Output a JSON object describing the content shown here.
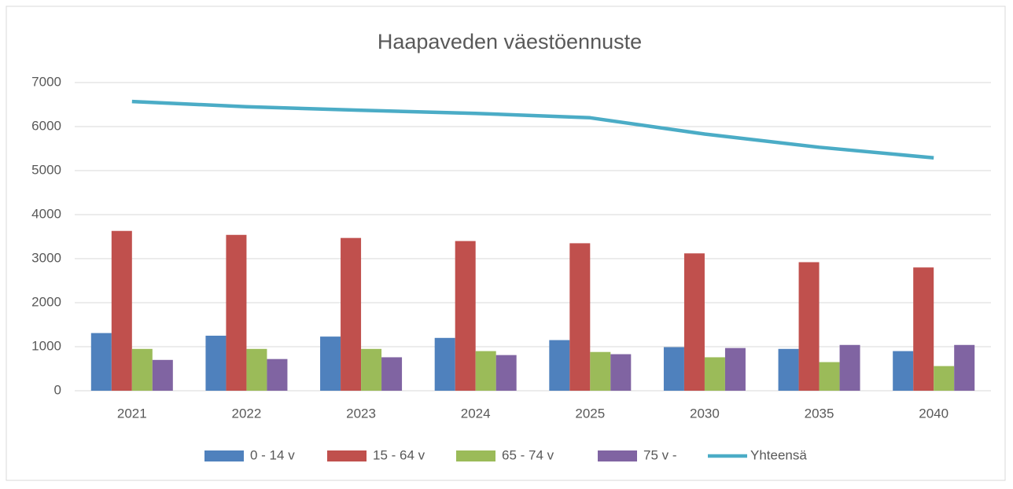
{
  "chart_data": {
    "type": "bar-line",
    "title": "Haapaveden väestöennuste",
    "categories": [
      "2021",
      "2022",
      "2023",
      "2024",
      "2025",
      "2030",
      "2035",
      "2040"
    ],
    "series": [
      {
        "name": "0 - 14 v",
        "type": "bar",
        "color": "#4f81bd",
        "values": [
          1310,
          1250,
          1230,
          1200,
          1150,
          990,
          950,
          900
        ]
      },
      {
        "name": "15 - 64 v",
        "type": "bar",
        "color": "#c0504d",
        "values": [
          3630,
          3540,
          3470,
          3400,
          3350,
          3120,
          2920,
          2800
        ]
      },
      {
        "name": "65 - 74 v",
        "type": "bar",
        "color": "#9bbb59",
        "values": [
          950,
          950,
          950,
          900,
          880,
          760,
          650,
          560
        ]
      },
      {
        "name": "75 v -",
        "type": "bar",
        "color": "#8064a2",
        "values": [
          700,
          720,
          760,
          810,
          830,
          970,
          1040,
          1040
        ]
      },
      {
        "name": "Yhteensä",
        "type": "line",
        "color": "#4bacc6",
        "values": [
          6570,
          6450,
          6370,
          6300,
          6200,
          5830,
          5530,
          5290
        ]
      }
    ],
    "ylim": [
      0,
      7000
    ],
    "yticks": [
      0,
      1000,
      2000,
      3000,
      4000,
      5000,
      6000,
      7000
    ],
    "grid": true,
    "legend": "bottom"
  }
}
